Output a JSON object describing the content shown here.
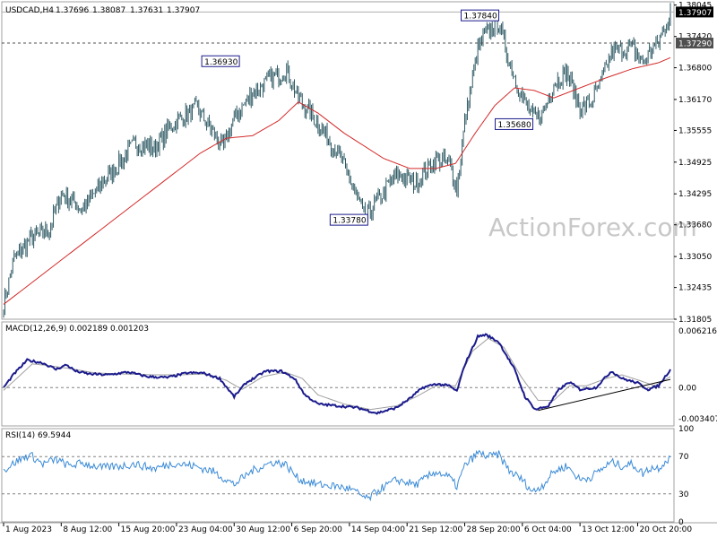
{
  "chart_data": {
    "type": "line",
    "header": {
      "symbol": "USDCAD,H4",
      "open": "1.37696",
      "high": "1.38087",
      "low": "1.37631",
      "close": "1.37907"
    },
    "watermark": "ActionForex.com",
    "x_ticks": [
      "1 Aug 2023",
      "8 Aug 12:00",
      "15 Aug 20:00",
      "23 Aug 04:00",
      "30 Aug 12:00",
      "6 Sep 20:00",
      "14 Sep 04:00",
      "21 Sep 12:00",
      "28 Sep 20:00",
      "6 Oct 04:00",
      "13 Oct 12:00",
      "20 Oct 20:00"
    ],
    "x_tick_index": [
      0,
      44,
      88,
      132,
      176,
      220,
      264,
      308,
      352,
      396,
      440,
      484
    ],
    "price_panel": {
      "y_ticks": [
        "1.38045",
        "1.37420",
        "1.36800",
        "1.36170",
        "1.35555",
        "1.34925",
        "1.34295",
        "1.33680",
        "1.33050",
        "1.32435",
        "1.31805"
      ],
      "ylim": [
        1.31805,
        1.3811
      ],
      "current_price": "1.37907",
      "current_price_value": 1.37907,
      "level_line": "1.37290",
      "level_line_value": 1.3729,
      "bar_count": 510,
      "close_anchors": [
        [
          0,
          1.321
        ],
        [
          8,
          1.33
        ],
        [
          20,
          1.334
        ],
        [
          35,
          1.336
        ],
        [
          44,
          1.343
        ],
        [
          60,
          1.34
        ],
        [
          75,
          1.345
        ],
        [
          88,
          1.349
        ],
        [
          100,
          1.353
        ],
        [
          115,
          1.352
        ],
        [
          130,
          1.357
        ],
        [
          148,
          1.36
        ],
        [
          160,
          1.355
        ],
        [
          168,
          1.352
        ],
        [
          176,
          1.358
        ],
        [
          190,
          1.363
        ],
        [
          205,
          1.366
        ],
        [
          216,
          1.3675
        ],
        [
          225,
          1.362
        ],
        [
          240,
          1.357
        ],
        [
          255,
          1.351
        ],
        [
          264,
          1.346
        ],
        [
          276,
          1.338
        ],
        [
          284,
          1.341
        ],
        [
          300,
          1.347
        ],
        [
          315,
          1.345
        ],
        [
          330,
          1.35
        ],
        [
          340,
          1.349
        ],
        [
          346,
          1.344
        ],
        [
          352,
          1.357
        ],
        [
          362,
          1.372
        ],
        [
          372,
          1.376
        ],
        [
          378,
          1.377
        ],
        [
          386,
          1.369
        ],
        [
          396,
          1.362
        ],
        [
          404,
          1.358
        ],
        [
          412,
          1.359
        ],
        [
          420,
          1.365
        ],
        [
          430,
          1.367
        ],
        [
          440,
          1.36
        ],
        [
          448,
          1.361
        ],
        [
          456,
          1.365
        ],
        [
          464,
          1.371
        ],
        [
          472,
          1.3715
        ],
        [
          480,
          1.372
        ],
        [
          488,
          1.369
        ],
        [
          494,
          1.3715
        ],
        [
          500,
          1.373
        ],
        [
          504,
          1.3755
        ],
        [
          509,
          1.37907
        ]
      ],
      "ma_anchors": [
        [
          0,
          1.321
        ],
        [
          40,
          1.329
        ],
        [
          80,
          1.337
        ],
        [
          120,
          1.345
        ],
        [
          150,
          1.351
        ],
        [
          170,
          1.354
        ],
        [
          190,
          1.3545
        ],
        [
          210,
          1.3575
        ],
        [
          225,
          1.3612
        ],
        [
          240,
          1.359
        ],
        [
          260,
          1.355
        ],
        [
          290,
          1.35
        ],
        [
          310,
          1.348
        ],
        [
          330,
          1.348
        ],
        [
          345,
          1.349
        ],
        [
          360,
          1.355
        ],
        [
          375,
          1.3605
        ],
        [
          390,
          1.364
        ],
        [
          405,
          1.3635
        ],
        [
          420,
          1.362
        ],
        [
          440,
          1.364
        ],
        [
          460,
          1.366
        ],
        [
          480,
          1.3678
        ],
        [
          500,
          1.369
        ],
        [
          509,
          1.37
        ]
      ],
      "labels": [
        {
          "text": "1.36930",
          "value": 1.3693,
          "bar": 180,
          "pos": "left"
        },
        {
          "text": "1.33780",
          "value": 1.3378,
          "bar": 278,
          "pos": "left"
        },
        {
          "text": "1.37840",
          "value": 1.3784,
          "bar": 378,
          "pos": "left"
        },
        {
          "text": "1.35680",
          "value": 1.3568,
          "bar": 404,
          "pos": "left"
        }
      ]
    },
    "macd_panel": {
      "label": "MACD(12,26,9) 0.002189 0.001203",
      "y_ticks": [
        "0.006216",
        "0.00",
        "-0.003407"
      ],
      "y_tick_values": [
        0.006216,
        0.0,
        -0.003407
      ],
      "ylim": [
        -0.0042,
        0.0072
      ],
      "macd_anchors": [
        [
          0,
          0.0
        ],
        [
          8,
          0.0015
        ],
        [
          18,
          0.003
        ],
        [
          30,
          0.0027
        ],
        [
          40,
          0.002
        ],
        [
          48,
          0.0025
        ],
        [
          55,
          0.0018
        ],
        [
          65,
          0.0015
        ],
        [
          80,
          0.0014
        ],
        [
          95,
          0.0017
        ],
        [
          110,
          0.0012
        ],
        [
          125,
          0.0011
        ],
        [
          140,
          0.0016
        ],
        [
          152,
          0.0016
        ],
        [
          165,
          0.001
        ],
        [
          176,
          -0.001
        ],
        [
          185,
          0.0005
        ],
        [
          200,
          0.0018
        ],
        [
          212,
          0.0018
        ],
        [
          222,
          0.001
        ],
        [
          230,
          -0.0008
        ],
        [
          240,
          -0.0018
        ],
        [
          255,
          -0.002
        ],
        [
          270,
          -0.0022
        ],
        [
          285,
          -0.0028
        ],
        [
          300,
          -0.0022
        ],
        [
          310,
          -0.0012
        ],
        [
          320,
          0.0
        ],
        [
          330,
          0.0004
        ],
        [
          340,
          0.0002
        ],
        [
          346,
          -0.0004
        ],
        [
          352,
          0.0025
        ],
        [
          362,
          0.0056
        ],
        [
          368,
          0.0058
        ],
        [
          378,
          0.005
        ],
        [
          390,
          0.002
        ],
        [
          398,
          -0.001
        ],
        [
          406,
          -0.0024
        ],
        [
          416,
          -0.002
        ],
        [
          424,
          -0.0002
        ],
        [
          432,
          0.0006
        ],
        [
          440,
          -0.0002
        ],
        [
          452,
          0.0
        ],
        [
          464,
          0.0018
        ],
        [
          472,
          0.001
        ],
        [
          484,
          0.0005
        ],
        [
          492,
          -0.0002
        ],
        [
          500,
          0.0002
        ],
        [
          509,
          0.002
        ]
      ],
      "signal_anchors": [
        [
          0,
          -0.0003
        ],
        [
          10,
          0.001
        ],
        [
          22,
          0.0026
        ],
        [
          35,
          0.0024
        ],
        [
          50,
          0.0021
        ],
        [
          70,
          0.0016
        ],
        [
          90,
          0.0015
        ],
        [
          115,
          0.0014
        ],
        [
          135,
          0.0014
        ],
        [
          155,
          0.0015
        ],
        [
          170,
          0.0008
        ],
        [
          182,
          -0.0002
        ],
        [
          198,
          0.0012
        ],
        [
          215,
          0.0017
        ],
        [
          228,
          0.001
        ],
        [
          240,
          -0.0008
        ],
        [
          260,
          -0.0018
        ],
        [
          280,
          -0.0024
        ],
        [
          300,
          -0.002
        ],
        [
          315,
          -0.001
        ],
        [
          330,
          0.0002
        ],
        [
          345,
          0.0002
        ],
        [
          358,
          0.004
        ],
        [
          370,
          0.0054
        ],
        [
          382,
          0.0044
        ],
        [
          395,
          0.0012
        ],
        [
          408,
          -0.0014
        ],
        [
          420,
          -0.0014
        ],
        [
          432,
          0.0002
        ],
        [
          445,
          0.0002
        ],
        [
          460,
          0.001
        ],
        [
          472,
          0.0014
        ],
        [
          485,
          0.0008
        ],
        [
          497,
          0.0002
        ],
        [
          509,
          0.0012
        ]
      ],
      "trendline": [
        [
          408,
          -0.0025
        ],
        [
          509,
          0.0009
        ]
      ]
    },
    "rsi_panel": {
      "label": "RSI(14) 69.5944",
      "y_ticks": [
        "100",
        "70",
        "30",
        "0"
      ],
      "y_tick_values": [
        100,
        70,
        30,
        0
      ],
      "levels": [
        70,
        30
      ],
      "ylim": [
        0,
        100
      ],
      "rsi_anchors": [
        [
          0,
          55
        ],
        [
          10,
          65
        ],
        [
          20,
          72
        ],
        [
          30,
          62
        ],
        [
          40,
          67
        ],
        [
          50,
          60
        ],
        [
          60,
          63
        ],
        [
          75,
          58
        ],
        [
          90,
          60
        ],
        [
          100,
          62
        ],
        [
          115,
          57
        ],
        [
          130,
          63
        ],
        [
          145,
          60
        ],
        [
          160,
          54
        ],
        [
          176,
          40
        ],
        [
          190,
          55
        ],
        [
          205,
          64
        ],
        [
          215,
          62
        ],
        [
          225,
          46
        ],
        [
          240,
          40
        ],
        [
          255,
          38
        ],
        [
          265,
          35
        ],
        [
          278,
          24
        ],
        [
          286,
          34
        ],
        [
          300,
          45
        ],
        [
          315,
          40
        ],
        [
          330,
          54
        ],
        [
          340,
          48
        ],
        [
          346,
          38
        ],
        [
          352,
          60
        ],
        [
          362,
          74
        ],
        [
          370,
          70
        ],
        [
          378,
          72
        ],
        [
          386,
          55
        ],
        [
          396,
          45
        ],
        [
          404,
          32
        ],
        [
          412,
          40
        ],
        [
          420,
          54
        ],
        [
          430,
          60
        ],
        [
          440,
          45
        ],
        [
          448,
          48
        ],
        [
          456,
          56
        ],
        [
          464,
          64
        ],
        [
          472,
          60
        ],
        [
          480,
          62
        ],
        [
          488,
          52
        ],
        [
          494,
          58
        ],
        [
          500,
          58
        ],
        [
          509,
          69.59
        ]
      ]
    }
  },
  "colors": {
    "bars": "#2f5a64",
    "ma": "#d42a2a",
    "macd": "#1a1a8c",
    "signal": "#a0a0a0",
    "rsi": "#3a8ad6",
    "grid_dash": "#808080",
    "frame": "#a0a0a0",
    "label_border": "#1a1a8c"
  }
}
